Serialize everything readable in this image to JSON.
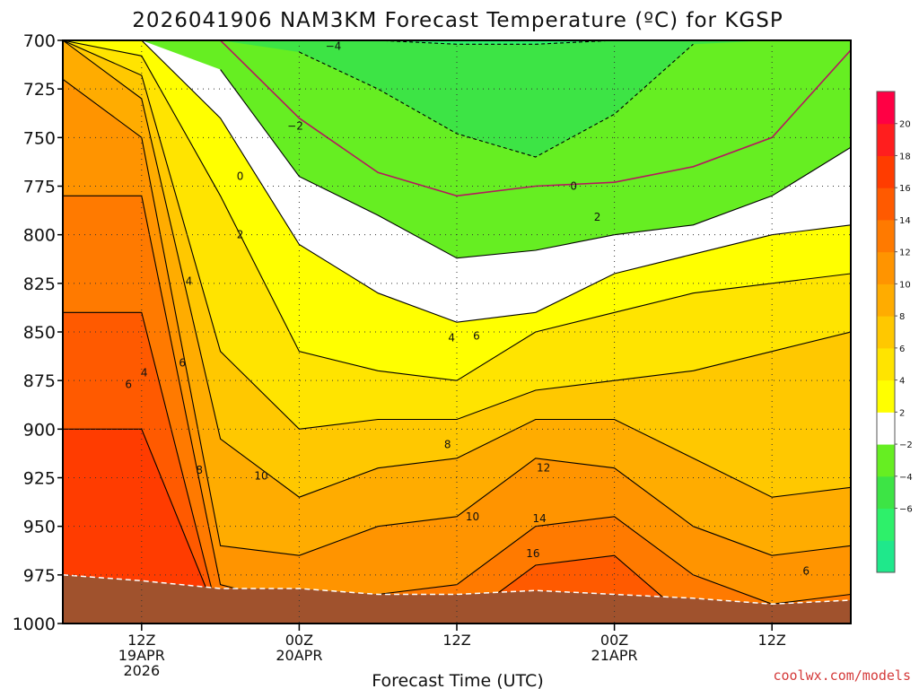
{
  "chart_data": {
    "type": "heatmap",
    "title": "2026041906 NAM3KM Forecast Temperature (ºC) for KGSP",
    "xlabel": "Forecast Time (UTC)",
    "ylabel": "",
    "credit": "coolwx.com/models",
    "y_axis": {
      "unit": "hPa",
      "inverted": true,
      "ylim": [
        700,
        1000
      ],
      "ticks": [
        700,
        725,
        750,
        775,
        800,
        825,
        850,
        875,
        900,
        925,
        950,
        975,
        1000
      ]
    },
    "x_axis": {
      "unit": "forecast hour",
      "xlim": [
        0,
        60
      ],
      "ticks": [
        {
          "hour": 6,
          "lines": [
            "12Z",
            "19APR",
            "2026"
          ]
        },
        {
          "hour": 18,
          "lines": [
            "00Z",
            "20APR"
          ]
        },
        {
          "hour": 30,
          "lines": [
            "12Z"
          ]
        },
        {
          "hour": 42,
          "lines": [
            "00Z",
            "21APR"
          ]
        },
        {
          "hour": 54,
          "lines": [
            "12Z"
          ]
        }
      ]
    },
    "grid": "dotted",
    "colorbar": {
      "position": "right",
      "levels": [
        -8,
        -6,
        -4,
        -2,
        2,
        4,
        6,
        8,
        10,
        12,
        14,
        16,
        18,
        20,
        22
      ],
      "tick_labels": [
        "20",
        "18",
        "16",
        "14",
        "12",
        "10",
        "8",
        "6",
        "4",
        "2",
        "−2",
        "−4",
        "−6"
      ],
      "colors": [
        "#1fe88b",
        "#2ef06a",
        "#3de445",
        "#66ee22",
        "#ffffff",
        "#ffff00",
        "#ffe400",
        "#ffc800",
        "#ffac00",
        "#ff9400",
        "#ff7a00",
        "#ff5a00",
        "#ff3c00",
        "#ff1e1e",
        "#ff0044"
      ]
    },
    "contour_labels": [
      {
        "text": "−4",
        "hour": 20.6,
        "pressure": 703
      },
      {
        "text": "−2",
        "hour": 17.7,
        "pressure": 744
      },
      {
        "text": "0",
        "hour": 13.5,
        "pressure": 770
      },
      {
        "text": "0",
        "hour": 38.9,
        "pressure": 775
      },
      {
        "text": "2",
        "hour": 40.7,
        "pressure": 791
      },
      {
        "text": "2",
        "hour": 13.5,
        "pressure": 800
      },
      {
        "text": "4",
        "hour": 9.6,
        "pressure": 824
      },
      {
        "text": "4",
        "hour": 29.6,
        "pressure": 853
      },
      {
        "text": "6",
        "hour": 31.5,
        "pressure": 852
      },
      {
        "text": "6",
        "hour": 9.1,
        "pressure": 866
      },
      {
        "text": "4",
        "hour": 6.2,
        "pressure": 871
      },
      {
        "text": "6",
        "hour": 5.0,
        "pressure": 877
      },
      {
        "text": "8",
        "hour": 29.3,
        "pressure": 908
      },
      {
        "text": "8",
        "hour": 10.4,
        "pressure": 921
      },
      {
        "text": "12",
        "hour": 36.6,
        "pressure": 920
      },
      {
        "text": "10",
        "hour": 15.1,
        "pressure": 924
      },
      {
        "text": "10",
        "hour": 31.2,
        "pressure": 945
      },
      {
        "text": "14",
        "hour": 36.3,
        "pressure": 946
      },
      {
        "text": "16",
        "hour": 35.8,
        "pressure": 964
      },
      {
        "text": "6",
        "hour": 56.6,
        "pressure": 973
      }
    ],
    "approximate_fields": {
      "hours": [
        0,
        6,
        12,
        18,
        24,
        30,
        36,
        42,
        48,
        54,
        60
      ],
      "isotherm_levels": [
        -4,
        -2,
        0,
        2,
        4,
        6,
        8,
        10,
        12,
        14,
        16,
        18
      ],
      "isotherm_pressures": [
        [
          null,
          null,
          null,
          null,
          700,
          702,
          702,
          700,
          null,
          null,
          null
        ],
        [
          null,
          null,
          null,
          706,
          725,
          748,
          760,
          738,
          702,
          null,
          null
        ],
        [
          null,
          null,
          700,
          740,
          768,
          780,
          775,
          773,
          765,
          750,
          705
        ],
        [
          null,
          null,
          715,
          770,
          790,
          812,
          808,
          800,
          795,
          780,
          755
        ],
        [
          700,
          700,
          740,
          805,
          830,
          845,
          840,
          820,
          810,
          800,
          795
        ],
        [
          700,
          708,
          780,
          860,
          870,
          875,
          850,
          840,
          830,
          825,
          820
        ],
        [
          700,
          718,
          860,
          900,
          895,
          895,
          880,
          875,
          870,
          860,
          850
        ],
        [
          700,
          730,
          905,
          935,
          920,
          915,
          895,
          895,
          915,
          935,
          930
        ],
        [
          720,
          750,
          960,
          965,
          950,
          945,
          915,
          920,
          950,
          965,
          960
        ],
        [
          780,
          780,
          980,
          990,
          985,
          980,
          950,
          945,
          975,
          990,
          985
        ],
        [
          840,
          840,
          1000,
          1000,
          1000,
          1000,
          970,
          965,
          1000,
          1000,
          1000
        ],
        [
          900,
          900,
          1000,
          1000,
          1000,
          1000,
          990,
          985,
          1000,
          1000,
          1000
        ]
      ],
      "surface_pressure": [
        975,
        978,
        982,
        982,
        985,
        985,
        983,
        985,
        987,
        990,
        988
      ]
    }
  }
}
